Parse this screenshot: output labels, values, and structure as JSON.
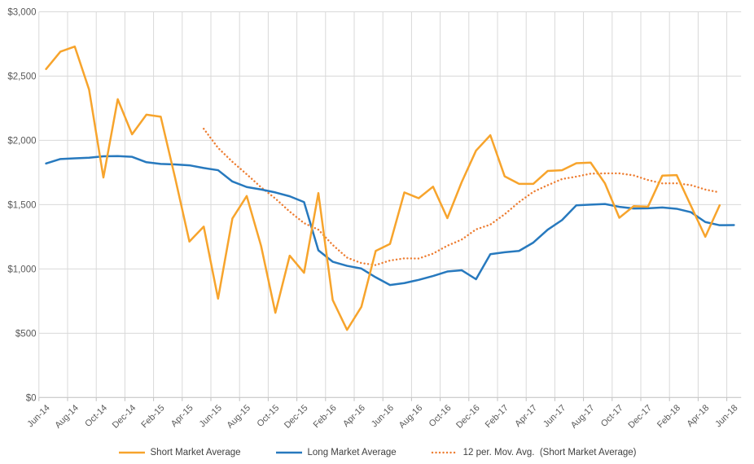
{
  "chart_data": {
    "type": "line",
    "title": "",
    "grid": true,
    "legend_position": "bottom",
    "x_label_interval": 2,
    "categories": [
      "Jun-14",
      "Jul-14",
      "Aug-14",
      "Sep-14",
      "Oct-14",
      "Nov-14",
      "Dec-14",
      "Jan-15",
      "Feb-15",
      "Mar-15",
      "Apr-15",
      "May-15",
      "Jun-15",
      "Jul-15",
      "Aug-15",
      "Sep-15",
      "Oct-15",
      "Nov-15",
      "Dec-15",
      "Jan-16",
      "Feb-16",
      "Mar-16",
      "Apr-16",
      "May-16",
      "Jun-16",
      "Jul-16",
      "Aug-16",
      "Sep-16",
      "Oct-16",
      "Nov-16",
      "Dec-16",
      "Jan-17",
      "Feb-17",
      "Mar-17",
      "Apr-17",
      "May-17",
      "Jun-17",
      "Jul-17",
      "Aug-17",
      "Sep-17",
      "Oct-17",
      "Nov-17",
      "Dec-17",
      "Jan-18",
      "Feb-18",
      "Mar-18",
      "Apr-18",
      "May-18",
      "Jun-18"
    ],
    "y_axis": {
      "min": 0,
      "max": 3000,
      "step": 500,
      "tick_labels": [
        "$0",
        "$500",
        "$1,000",
        "$1,500",
        "$2,000",
        "$2,500",
        "$3,000"
      ]
    },
    "series": [
      {
        "name": "Short Market Average",
        "color": "#F7A42C",
        "style": "solid",
        "values": [
          2555,
          2690,
          2730,
          2395,
          1711,
          2320,
          2047,
          2200,
          2184,
          1710,
          1213,
          1329,
          769,
          1392,
          1567,
          1180,
          659,
          1103,
          970,
          1590,
          758,
          526,
          705,
          1140,
          1195,
          1595,
          1550,
          1640,
          1395,
          1675,
          1920,
          2040,
          1720,
          1662,
          1662,
          1762,
          1768,
          1822,
          1827,
          1665,
          1398,
          1488,
          1484,
          1726,
          1730,
          1490,
          1250,
          1495,
          null
        ]
      },
      {
        "name": "Long Market Average",
        "color": "#2779BE",
        "style": "solid",
        "values": [
          1820,
          1855,
          1860,
          1865,
          1876,
          1878,
          1872,
          1830,
          1817,
          1813,
          1806,
          1785,
          1768,
          1680,
          1637,
          1618,
          1595,
          1565,
          1520,
          1145,
          1056,
          1024,
          1003,
          935,
          875,
          890,
          915,
          945,
          980,
          990,
          920,
          1115,
          1130,
          1140,
          1205,
          1305,
          1380,
          1495,
          1500,
          1505,
          1483,
          1470,
          1472,
          1478,
          1468,
          1441,
          1365,
          1340,
          1341
        ]
      },
      {
        "name": "12 per. Mov. Avg.  (Short Market Average)",
        "color": "#ED7D31",
        "style": "dotted",
        "derived": "trailing_12_average_of_series_0",
        "period": 12
      }
    ],
    "colors": {
      "gridline": "#D9D9D9",
      "axis_line": "#BFBFBF",
      "tick_text": "#595959"
    }
  }
}
